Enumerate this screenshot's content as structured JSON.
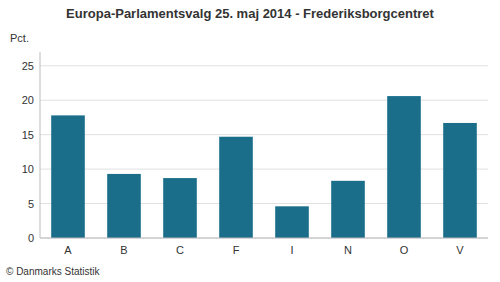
{
  "chart_data": {
    "type": "bar",
    "title": "Europa-Parlamentsvalg 25. maj 2014 - Frederiksborgcentret",
    "categories": [
      "A",
      "B",
      "C",
      "F",
      "I",
      "N",
      "O",
      "V"
    ],
    "values": [
      17.8,
      9.3,
      8.7,
      14.7,
      4.6,
      8.3,
      20.6,
      16.7
    ],
    "color": "#1a6e8a",
    "ylabel": "Pct.",
    "ylim": [
      0,
      27
    ],
    "yticks": [
      0,
      5,
      10,
      15,
      20,
      25
    ],
    "grid": true,
    "footer": "© Danmarks Statistik"
  }
}
